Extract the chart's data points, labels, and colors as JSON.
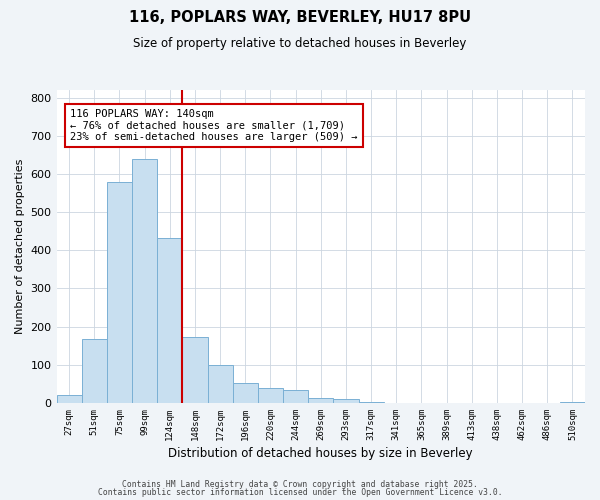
{
  "title": "116, POPLARS WAY, BEVERLEY, HU17 8PU",
  "subtitle": "Size of property relative to detached houses in Beverley",
  "xlabel": "Distribution of detached houses by size in Beverley",
  "ylabel": "Number of detached properties",
  "bin_labels": [
    "27sqm",
    "51sqm",
    "75sqm",
    "99sqm",
    "124sqm",
    "148sqm",
    "172sqm",
    "196sqm",
    "220sqm",
    "244sqm",
    "269sqm",
    "293sqm",
    "317sqm",
    "341sqm",
    "365sqm",
    "389sqm",
    "413sqm",
    "438sqm",
    "462sqm",
    "486sqm",
    "510sqm"
  ],
  "bar_values": [
    20,
    168,
    578,
    638,
    432,
    172,
    100,
    52,
    40,
    33,
    12,
    10,
    2,
    0,
    0,
    0,
    0,
    0,
    0,
    0,
    2
  ],
  "bar_color": "#c8dff0",
  "bar_edge_color": "#7ab0d4",
  "vline_x_index": 5,
  "vline_color": "#cc0000",
  "annotation_title": "116 POPLARS WAY: 140sqm",
  "annotation_line1": "← 76% of detached houses are smaller (1,709)",
  "annotation_line2": "23% of semi-detached houses are larger (509) →",
  "annotation_box_edge_color": "#cc0000",
  "ylim": [
    0,
    820
  ],
  "yticks": [
    0,
    100,
    200,
    300,
    400,
    500,
    600,
    700,
    800
  ],
  "footer1": "Contains HM Land Registry data © Crown copyright and database right 2025.",
  "footer2": "Contains public sector information licensed under the Open Government Licence v3.0.",
  "bg_color": "#f0f4f8",
  "plot_bg_color": "#ffffff",
  "grid_color": "#ccd6e0"
}
